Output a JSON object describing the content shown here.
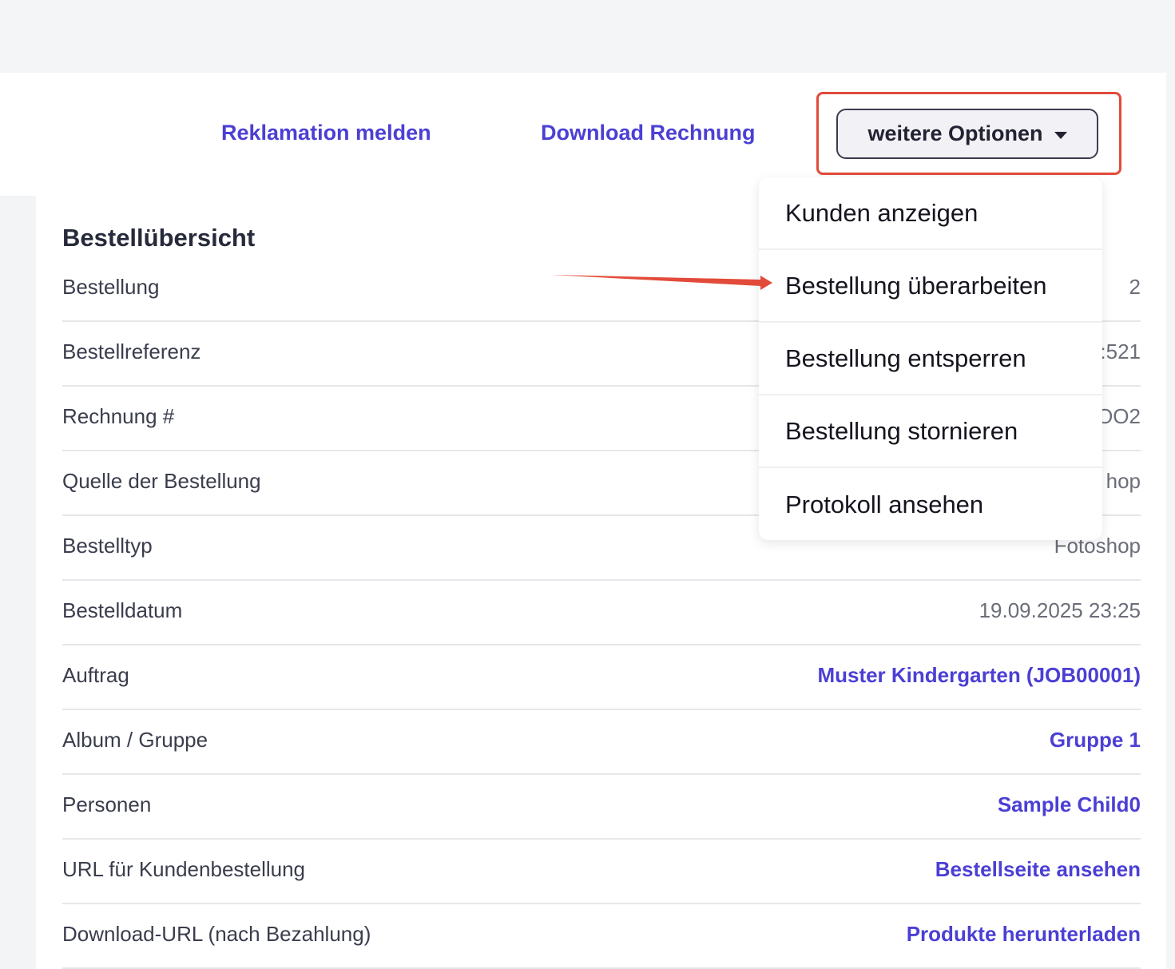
{
  "colors": {
    "link": "#4b3fd4",
    "annotation": "#e24b3a"
  },
  "actions": {
    "complaint": "Reklamation melden",
    "download_invoice": "Download Rechnung",
    "more_options": "weitere Optionen"
  },
  "overview": {
    "title": "Bestellübersicht",
    "rows": [
      {
        "label": "Bestellung",
        "value": "2",
        "link": false
      },
      {
        "label": "Bestellreferenz",
        "value": ":521",
        "link": false
      },
      {
        "label": "Rechnung #",
        "value": "OO2",
        "link": false
      },
      {
        "label": "Quelle der Bestellung",
        "value": "hop",
        "link": false
      },
      {
        "label": "Bestelltyp",
        "value": "Fotoshop",
        "link": false
      },
      {
        "label": "Bestelldatum",
        "value": "19.09.2025 23:25",
        "link": false
      },
      {
        "label": "Auftrag",
        "value": "Muster Kindergarten (JOB00001)",
        "link": true
      },
      {
        "label": "Album / Gruppe",
        "value": "Gruppe 1",
        "link": true
      },
      {
        "label": "Personen",
        "value": "Sample Child0",
        "link": true
      },
      {
        "label": "URL für Kundenbestellung",
        "value": "Bestellseite ansehen",
        "link": true
      },
      {
        "label": "Download-URL (nach Bezahlung)",
        "value": "Produkte herunterladen",
        "link": true
      }
    ]
  },
  "menu": {
    "items": [
      "Kunden anzeigen",
      "Bestellung überarbeiten",
      "Bestellung entsperren",
      "Bestellung stornieren",
      "Protokoll ansehen"
    ]
  }
}
